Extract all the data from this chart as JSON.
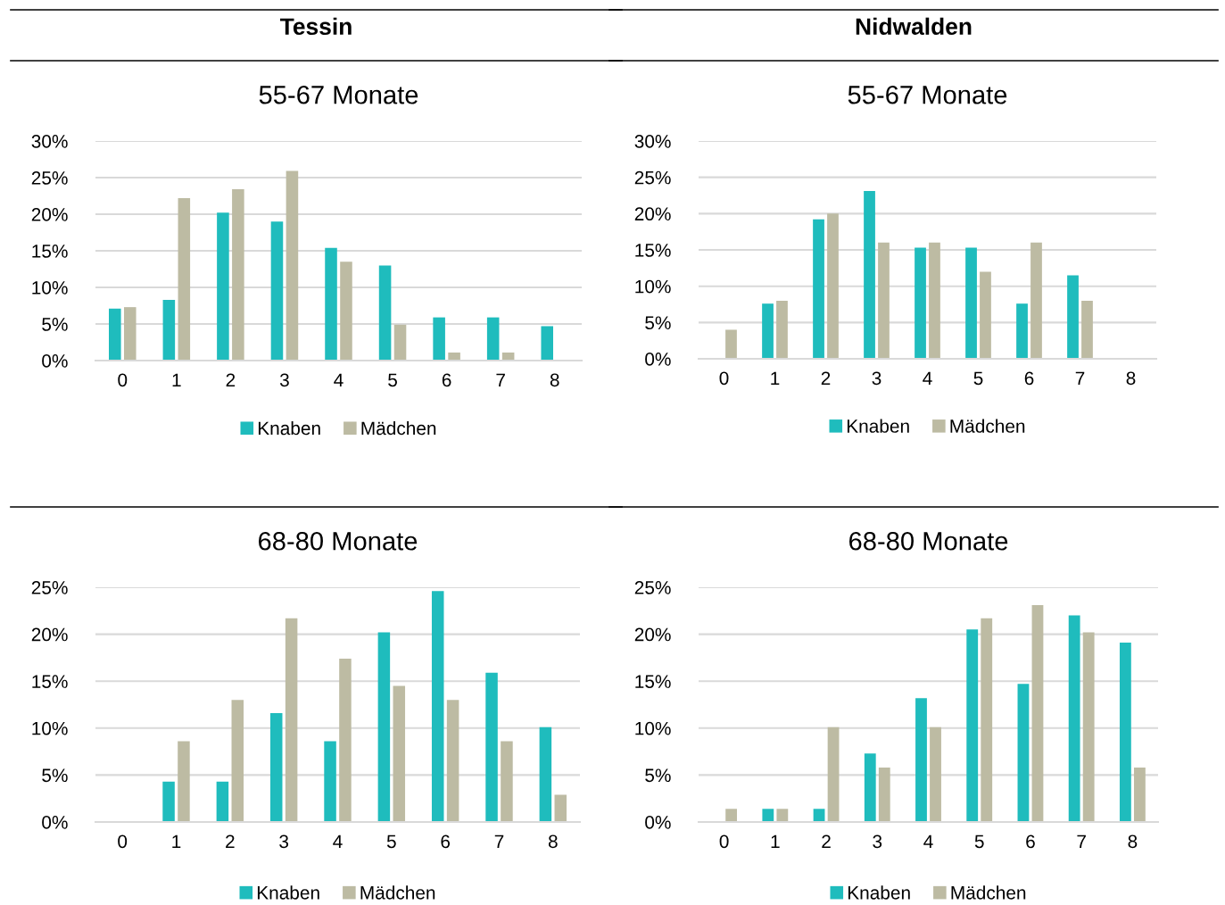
{
  "chart_data": [
    {
      "type": "bar",
      "title": "55-67 Monate",
      "annotations": [
        "Tessin"
      ],
      "categories": [
        "0",
        "1",
        "2",
        "3",
        "4",
        "5",
        "6",
        "7",
        "8"
      ],
      "series": [
        {
          "name": "Knaben",
          "color": "#1fbcbd",
          "values": [
            7.1,
            8.3,
            20.2,
            19.0,
            15.4,
            13.0,
            5.9,
            5.9,
            4.7
          ]
        },
        {
          "name": "Mädchen",
          "color": "#bdbba3",
          "values": [
            7.3,
            22.2,
            23.4,
            25.9,
            13.5,
            4.9,
            1.1,
            1.1,
            null
          ]
        }
      ],
      "ylim": [
        0,
        30
      ],
      "yticks": [
        {
          "value": 0,
          "label": "0%"
        },
        {
          "value": 5,
          "label": "5%"
        },
        {
          "value": 10,
          "label": "10%"
        },
        {
          "value": 15,
          "label": "15%"
        },
        {
          "value": 20,
          "label": "20%"
        },
        {
          "value": 25,
          "label": "25%"
        },
        {
          "value": 30,
          "label": "30%"
        }
      ],
      "grid": "y",
      "legend": "bottom"
    },
    {
      "type": "bar",
      "title": "55-67 Monate",
      "annotations": [
        "Nidwalden"
      ],
      "categories": [
        "0",
        "1",
        "2",
        "3",
        "4",
        "5",
        "6",
        "7",
        "8"
      ],
      "series": [
        {
          "name": "Knaben",
          "color": "#1fbcbd",
          "values": [
            null,
            7.6,
            19.2,
            23.1,
            15.3,
            15.3,
            7.6,
            11.5,
            null
          ]
        },
        {
          "name": "Mädchen",
          "color": "#bdbba3",
          "values": [
            4.0,
            8.0,
            20.0,
            16.0,
            16.0,
            12.0,
            16.0,
            8.0,
            null
          ]
        }
      ],
      "ylim": [
        0,
        30
      ],
      "yticks": [
        {
          "value": 0,
          "label": "0%"
        },
        {
          "value": 5,
          "label": "5%"
        },
        {
          "value": 10,
          "label": "10%"
        },
        {
          "value": 15,
          "label": "15%"
        },
        {
          "value": 20,
          "label": "20%"
        },
        {
          "value": 25,
          "label": "25%"
        },
        {
          "value": 30,
          "label": "30%"
        }
      ],
      "grid": "y",
      "legend": "bottom"
    },
    {
      "type": "bar",
      "title": "68-80 Monate",
      "categories": [
        "0",
        "1",
        "2",
        "3",
        "4",
        "5",
        "6",
        "7",
        "8"
      ],
      "series": [
        {
          "name": "Knaben",
          "color": "#1fbcbd",
          "values": [
            null,
            4.3,
            4.3,
            11.6,
            8.6,
            20.2,
            24.6,
            15.9,
            10.1
          ]
        },
        {
          "name": "Mädchen",
          "color": "#bdbba3",
          "values": [
            null,
            8.6,
            13.0,
            21.7,
            17.4,
            14.5,
            13.0,
            8.6,
            2.9
          ]
        }
      ],
      "ylim": [
        0,
        25
      ],
      "yticks": [
        {
          "value": 0,
          "label": "0%"
        },
        {
          "value": 5,
          "label": "5%"
        },
        {
          "value": 10,
          "label": "10%"
        },
        {
          "value": 15,
          "label": "15%"
        },
        {
          "value": 20,
          "label": "20%"
        },
        {
          "value": 25,
          "label": "25%"
        }
      ],
      "grid": "y",
      "legend": "bottom"
    },
    {
      "type": "bar",
      "title": "68-80 Monate",
      "categories": [
        "0",
        "1",
        "2",
        "3",
        "4",
        "5",
        "6",
        "7",
        "8"
      ],
      "series": [
        {
          "name": "Knaben",
          "color": "#1fbcbd",
          "values": [
            null,
            1.4,
            1.4,
            7.3,
            13.2,
            20.5,
            14.7,
            22.0,
            19.1
          ]
        },
        {
          "name": "Mädchen",
          "color": "#bdbba3",
          "values": [
            1.4,
            1.4,
            10.1,
            5.8,
            10.1,
            21.7,
            23.1,
            20.2,
            5.8
          ]
        }
      ],
      "ylim": [
        0,
        25
      ],
      "yticks": [
        {
          "value": 0,
          "label": "0%"
        },
        {
          "value": 5,
          "label": "5%"
        },
        {
          "value": 10,
          "label": "10%"
        },
        {
          "value": 15,
          "label": "15%"
        },
        {
          "value": 20,
          "label": "20%"
        },
        {
          "value": 25,
          "label": "25%"
        }
      ],
      "grid": "y",
      "legend": "bottom"
    }
  ]
}
